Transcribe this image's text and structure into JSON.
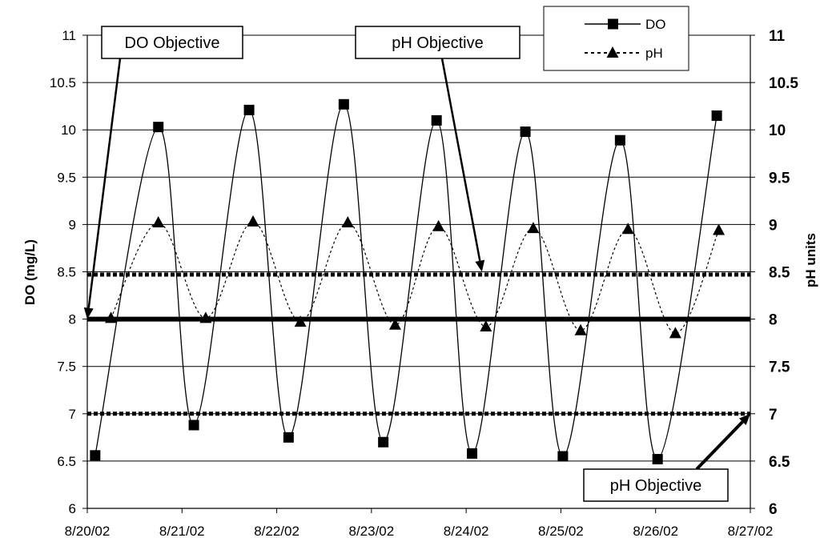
{
  "chart_data": {
    "type": "line",
    "title": "",
    "xlabel": "",
    "ylabel": "DO (mg/L)",
    "y2label": "pH units",
    "x_ticks": [
      "8/20/02",
      "8/21/02",
      "8/22/02",
      "8/23/02",
      "8/24/02",
      "8/25/02",
      "8/26/02",
      "8/27/02"
    ],
    "ylim": [
      6,
      11
    ],
    "y_ticks": [
      "6",
      "6.5",
      "7",
      "7.5",
      "8",
      "8.5",
      "9",
      "9.5",
      "10",
      "10.5",
      "11"
    ],
    "y2lim": [
      6,
      11
    ],
    "y2_ticks": [
      "6",
      "6.5",
      "7",
      "7.5",
      "8",
      "8.5",
      "9",
      "9.5",
      "10",
      "10.5",
      "11"
    ],
    "grid": true,
    "legend_position": "top-right",
    "series": [
      {
        "name": "DO",
        "axis": "left",
        "color": "#000000",
        "line_style": "solid",
        "marker": "square",
        "x": [
          "8/20/02 02:00",
          "8/20/02 18:00",
          "8/21/02 03:00",
          "8/21/02 17:00",
          "8/22/02 03:00",
          "8/22/02 17:00",
          "8/23/02 03:00",
          "8/23/02 16:30",
          "8/24/02 01:30",
          "8/24/02 15:00",
          "8/25/02 00:30",
          "8/25/02 15:00",
          "8/26/02 00:30",
          "8/26/02 15:30"
        ],
        "values": [
          6.56,
          10.03,
          6.88,
          10.21,
          6.75,
          10.27,
          6.7,
          10.1,
          6.58,
          9.98,
          6.55,
          9.89,
          6.52,
          10.15
        ]
      },
      {
        "name": "pH",
        "axis": "right",
        "color": "#000000",
        "line_style": "dotted",
        "marker": "triangle",
        "x": [
          "8/20/02 06:00",
          "8/20/02 18:00",
          "8/21/02 06:00",
          "8/21/02 18:00",
          "8/22/02 06:00",
          "8/22/02 18:00",
          "8/23/02 06:00",
          "8/23/02 17:00",
          "8/24/02 05:00",
          "8/24/02 17:00",
          "8/25/02 05:00",
          "8/25/02 17:00",
          "8/26/02 05:00",
          "8/26/02 16:00"
        ],
        "values": [
          8.01,
          9.02,
          8.01,
          9.03,
          7.97,
          9.02,
          7.94,
          8.98,
          7.92,
          8.96,
          7.88,
          8.95,
          7.85,
          8.94
        ]
      }
    ],
    "reference_lines": [
      {
        "value": 8.0,
        "axis": "left",
        "style": "solid"
      },
      {
        "value": 8.47,
        "axis": "right",
        "style": "dotted"
      },
      {
        "value": 7.0,
        "axis": "right",
        "style": "dotted"
      }
    ],
    "annotations": [
      {
        "text": "DO Objective",
        "target": "8/20/02 00:00",
        "target_value": 8.0
      },
      {
        "text": "pH Objective",
        "target": "8/24/02 04:00",
        "target_value": 8.5
      },
      {
        "text": "pH Objective",
        "target": "8/27/02 00:00",
        "target_value": 7.0
      }
    ]
  }
}
